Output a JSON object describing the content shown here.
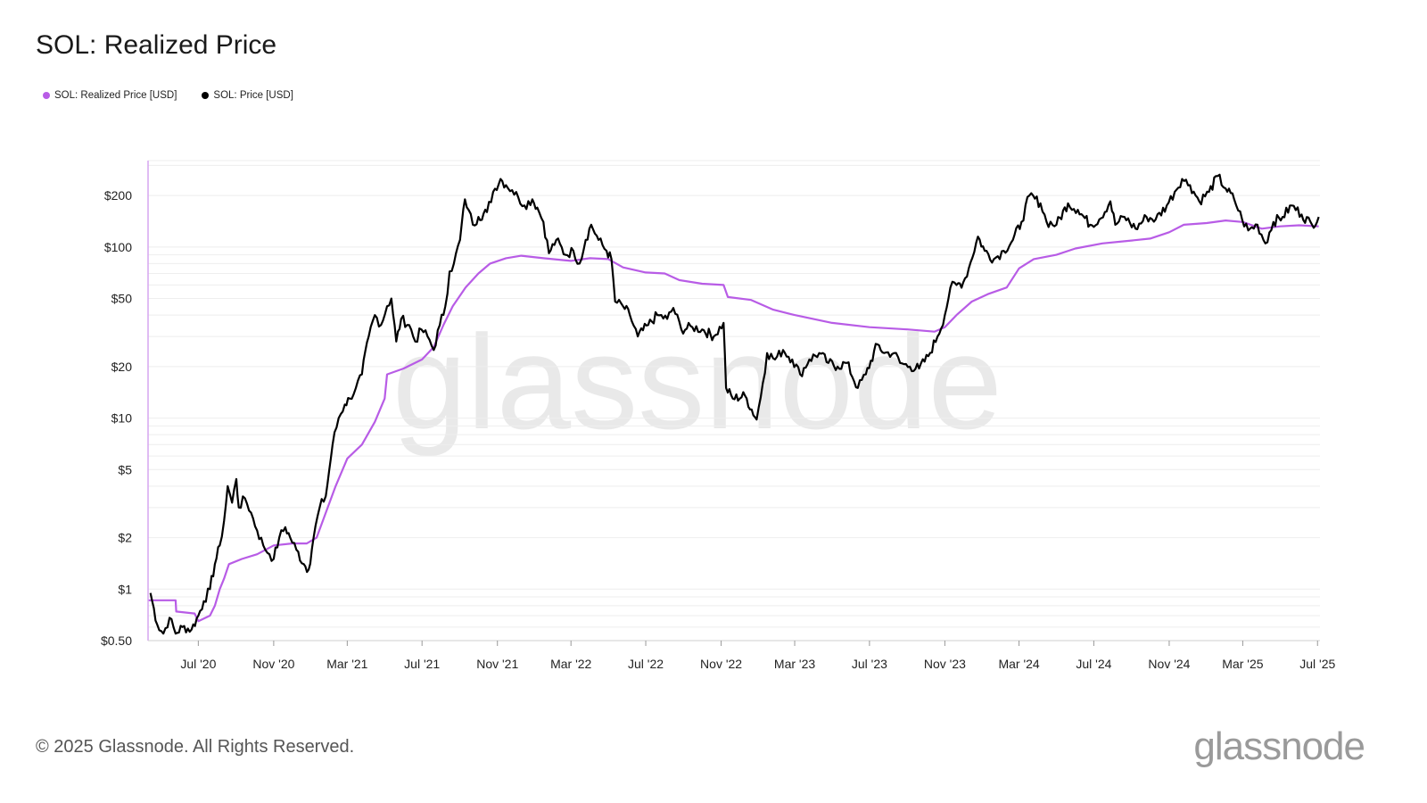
{
  "title": "SOL: Realized Price",
  "legend": [
    {
      "label": "SOL: Realized Price [USD]",
      "color": "#b85ce6"
    },
    {
      "label": "SOL: Price [USD]",
      "color": "#000000"
    }
  ],
  "watermark": "glassnode",
  "footer": {
    "copyright": "© 2025 Glassnode. All Rights Reserved.",
    "brand": "glassnode"
  },
  "chart_data": {
    "type": "line",
    "y_scale": "log",
    "ylim": [
      0.5,
      320
    ],
    "xlim": [
      "2020-04-10",
      "2025-07-05"
    ],
    "grid": true,
    "legend_position": "top-left",
    "y_ticks": [
      {
        "value": 0.5,
        "label": "$0.50"
      },
      {
        "value": 1,
        "label": "$1"
      },
      {
        "value": 2,
        "label": "$2"
      },
      {
        "value": 5,
        "label": "$5"
      },
      {
        "value": 10,
        "label": "$10"
      },
      {
        "value": 20,
        "label": "$20"
      },
      {
        "value": 50,
        "label": "$50"
      },
      {
        "value": 100,
        "label": "$100"
      },
      {
        "value": 200,
        "label": "$200"
      }
    ],
    "x_ticks": [
      {
        "date": "2020-07-01",
        "label": "Jul '20"
      },
      {
        "date": "2020-11-01",
        "label": "Nov '20"
      },
      {
        "date": "2021-03-01",
        "label": "Mar '21"
      },
      {
        "date": "2021-07-01",
        "label": "Jul '21"
      },
      {
        "date": "2021-11-01",
        "label": "Nov '21"
      },
      {
        "date": "2022-03-01",
        "label": "Mar '22"
      },
      {
        "date": "2022-07-01",
        "label": "Jul '22"
      },
      {
        "date": "2022-11-01",
        "label": "Nov '22"
      },
      {
        "date": "2023-03-01",
        "label": "Mar '23"
      },
      {
        "date": "2023-07-01",
        "label": "Jul '23"
      },
      {
        "date": "2023-11-01",
        "label": "Nov '23"
      },
      {
        "date": "2024-03-01",
        "label": "Mar '24"
      },
      {
        "date": "2024-07-01",
        "label": "Jul '24"
      },
      {
        "date": "2024-11-01",
        "label": "Nov '24"
      },
      {
        "date": "2025-03-01",
        "label": "Mar '25"
      },
      {
        "date": "2025-07-01",
        "label": "Jul '25"
      }
    ],
    "series": [
      {
        "name": "SOL: Realized Price [USD]",
        "color": "#b85ce6",
        "points": [
          [
            "2020-04-11",
            0.86
          ],
          [
            "2020-05-25",
            0.86
          ],
          [
            "2020-05-26",
            0.74
          ],
          [
            "2020-06-25",
            0.72
          ],
          [
            "2020-07-01",
            0.65
          ],
          [
            "2020-07-20",
            0.7
          ],
          [
            "2020-07-28",
            0.8
          ],
          [
            "2020-08-05",
            1.0
          ],
          [
            "2020-08-12",
            1.15
          ],
          [
            "2020-08-20",
            1.4
          ],
          [
            "2020-09-10",
            1.5
          ],
          [
            "2020-10-05",
            1.6
          ],
          [
            "2020-11-01",
            1.8
          ],
          [
            "2020-12-01",
            1.85
          ],
          [
            "2020-12-25",
            1.85
          ],
          [
            "2021-01-10",
            2.0
          ],
          [
            "2021-01-25",
            2.8
          ],
          [
            "2021-02-10",
            4.0
          ],
          [
            "2021-03-01",
            5.8
          ],
          [
            "2021-03-25",
            7.0
          ],
          [
            "2021-04-15",
            9.5
          ],
          [
            "2021-05-01",
            13.0
          ],
          [
            "2021-05-05",
            18.0
          ],
          [
            "2021-06-01",
            19.5
          ],
          [
            "2021-07-01",
            22.0
          ],
          [
            "2021-07-20",
            26.0
          ],
          [
            "2021-08-05",
            35.0
          ],
          [
            "2021-08-20",
            45.0
          ],
          [
            "2021-09-10",
            58.0
          ],
          [
            "2021-10-01",
            70.0
          ],
          [
            "2021-10-20",
            80.0
          ],
          [
            "2021-11-15",
            86.0
          ],
          [
            "2021-12-10",
            89.0
          ],
          [
            "2022-01-15",
            86.0
          ],
          [
            "2022-03-01",
            83.0
          ],
          [
            "2022-04-01",
            86.0
          ],
          [
            "2022-05-01",
            85.0
          ],
          [
            "2022-05-25",
            76.0
          ],
          [
            "2022-07-01",
            71.0
          ],
          [
            "2022-08-01",
            70.0
          ],
          [
            "2022-08-25",
            64.0
          ],
          [
            "2022-10-01",
            61.0
          ],
          [
            "2022-11-05",
            60.0
          ],
          [
            "2022-11-12",
            51.0
          ],
          [
            "2022-12-20",
            49.0
          ],
          [
            "2023-01-25",
            43.0
          ],
          [
            "2023-03-01",
            40.0
          ],
          [
            "2023-05-01",
            36.0
          ],
          [
            "2023-07-01",
            34.0
          ],
          [
            "2023-09-01",
            33.0
          ],
          [
            "2023-10-15",
            32.0
          ],
          [
            "2023-11-01",
            34.0
          ],
          [
            "2023-11-20",
            40.0
          ],
          [
            "2023-12-15",
            48.0
          ],
          [
            "2024-01-10",
            53.0
          ],
          [
            "2024-02-10",
            58.0
          ],
          [
            "2024-03-01",
            75.0
          ],
          [
            "2024-03-25",
            85.0
          ],
          [
            "2024-05-01",
            90.0
          ],
          [
            "2024-06-01",
            98.0
          ],
          [
            "2024-07-15",
            105.0
          ],
          [
            "2024-08-20",
            108.0
          ],
          [
            "2024-10-01",
            112.0
          ],
          [
            "2024-11-01",
            122.0
          ],
          [
            "2024-11-25",
            135.0
          ],
          [
            "2025-01-01",
            138.0
          ],
          [
            "2025-02-01",
            143.0
          ],
          [
            "2025-03-01",
            140.0
          ],
          [
            "2025-04-01",
            128.0
          ],
          [
            "2025-05-01",
            132.0
          ],
          [
            "2025-06-01",
            134.0
          ],
          [
            "2025-07-03",
            132.0
          ]
        ]
      },
      {
        "name": "SOL: Price [USD]",
        "color": "#000000",
        "points": [
          [
            "2020-04-14",
            0.95
          ],
          [
            "2020-04-25",
            0.62
          ],
          [
            "2020-05-05",
            0.55
          ],
          [
            "2020-05-15",
            0.68
          ],
          [
            "2020-05-25",
            0.55
          ],
          [
            "2020-06-05",
            0.6
          ],
          [
            "2020-06-20",
            0.58
          ],
          [
            "2020-07-01",
            0.7
          ],
          [
            "2020-07-10",
            0.85
          ],
          [
            "2020-07-20",
            1.0
          ],
          [
            "2020-07-28",
            1.4
          ],
          [
            "2020-08-05",
            1.8
          ],
          [
            "2020-08-12",
            2.5
          ],
          [
            "2020-08-18",
            4.0
          ],
          [
            "2020-08-25",
            3.2
          ],
          [
            "2020-09-01",
            4.4
          ],
          [
            "2020-09-05",
            3.0
          ],
          [
            "2020-09-15",
            3.4
          ],
          [
            "2020-09-25",
            2.8
          ],
          [
            "2020-10-05",
            2.2
          ],
          [
            "2020-10-15",
            1.8
          ],
          [
            "2020-10-25",
            1.6
          ],
          [
            "2020-11-01",
            1.5
          ],
          [
            "2020-11-10",
            2.0
          ],
          [
            "2020-11-20",
            2.3
          ],
          [
            "2020-11-28",
            2.0
          ],
          [
            "2020-12-08",
            1.7
          ],
          [
            "2020-12-20",
            1.4
          ],
          [
            "2020-12-28",
            1.3
          ],
          [
            "2021-01-05",
            2.0
          ],
          [
            "2021-01-15",
            3.0
          ],
          [
            "2021-01-25",
            3.5
          ],
          [
            "2021-02-05",
            7.0
          ],
          [
            "2021-02-15",
            10.0
          ],
          [
            "2021-02-25",
            12.0
          ],
          [
            "2021-03-05",
            13.0
          ],
          [
            "2021-03-15",
            15.0
          ],
          [
            "2021-03-25",
            18.0
          ],
          [
            "2021-04-05",
            30.0
          ],
          [
            "2021-04-15",
            40.0
          ],
          [
            "2021-04-25",
            35.0
          ],
          [
            "2021-05-05",
            45.0
          ],
          [
            "2021-05-12",
            50.0
          ],
          [
            "2021-05-20",
            28.0
          ],
          [
            "2021-05-28",
            38.0
          ],
          [
            "2021-06-10",
            35.0
          ],
          [
            "2021-06-20",
            28.0
          ],
          [
            "2021-06-30",
            33.0
          ],
          [
            "2021-07-10",
            30.0
          ],
          [
            "2021-07-20",
            25.0
          ],
          [
            "2021-07-30",
            35.0
          ],
          [
            "2021-08-08",
            45.0
          ],
          [
            "2021-08-15",
            72.0
          ],
          [
            "2021-08-22",
            80.0
          ],
          [
            "2021-09-01",
            110.0
          ],
          [
            "2021-09-09",
            190.0
          ],
          [
            "2021-09-15",
            165.0
          ],
          [
            "2021-09-22",
            135.0
          ],
          [
            "2021-10-01",
            150.0
          ],
          [
            "2021-10-15",
            160.0
          ],
          [
            "2021-10-25",
            210.0
          ],
          [
            "2021-11-06",
            250.0
          ],
          [
            "2021-11-15",
            230.0
          ],
          [
            "2021-11-25",
            215.0
          ],
          [
            "2021-12-05",
            195.0
          ],
          [
            "2021-12-15",
            175.0
          ],
          [
            "2021-12-28",
            190.0
          ],
          [
            "2022-01-05",
            170.0
          ],
          [
            "2022-01-15",
            140.0
          ],
          [
            "2022-01-24",
            92.0
          ],
          [
            "2022-02-05",
            110.0
          ],
          [
            "2022-02-20",
            90.0
          ],
          [
            "2022-03-05",
            95.0
          ],
          [
            "2022-03-15",
            80.0
          ],
          [
            "2022-03-25",
            110.0
          ],
          [
            "2022-04-03",
            135.0
          ],
          [
            "2022-04-15",
            110.0
          ],
          [
            "2022-04-28",
            95.0
          ],
          [
            "2022-05-06",
            85.0
          ],
          [
            "2022-05-12",
            48.0
          ],
          [
            "2022-05-25",
            45.0
          ],
          [
            "2022-06-05",
            40.0
          ],
          [
            "2022-06-18",
            30.0
          ],
          [
            "2022-07-05",
            35.0
          ],
          [
            "2022-07-20",
            40.0
          ],
          [
            "2022-08-05",
            38.0
          ],
          [
            "2022-08-15",
            44.0
          ],
          [
            "2022-08-28",
            33.0
          ],
          [
            "2022-09-15",
            34.0
          ],
          [
            "2022-10-01",
            33.0
          ],
          [
            "2022-10-20",
            30.0
          ],
          [
            "2022-11-05",
            36.0
          ],
          [
            "2022-11-09",
            15.0
          ],
          [
            "2022-11-20",
            13.0
          ],
          [
            "2022-12-10",
            13.5
          ],
          [
            "2022-12-29",
            9.8
          ],
          [
            "2023-01-08",
            16.0
          ],
          [
            "2023-01-15",
            24.0
          ],
          [
            "2023-01-28",
            22.0
          ],
          [
            "2023-02-10",
            25.0
          ],
          [
            "2023-02-25",
            22.0
          ],
          [
            "2023-03-10",
            18.0
          ],
          [
            "2023-03-25",
            22.0
          ],
          [
            "2023-04-10",
            24.0
          ],
          [
            "2023-04-25",
            21.0
          ],
          [
            "2023-05-10",
            20.0
          ],
          [
            "2023-05-25",
            21.0
          ],
          [
            "2023-06-12",
            15.0
          ],
          [
            "2023-06-25",
            18.0
          ],
          [
            "2023-07-14",
            27.0
          ],
          [
            "2023-07-25",
            24.0
          ],
          [
            "2023-08-10",
            24.0
          ],
          [
            "2023-08-20",
            21.0
          ],
          [
            "2023-09-05",
            20.0
          ],
          [
            "2023-09-20",
            19.5
          ],
          [
            "2023-10-05",
            23.0
          ],
          [
            "2023-10-20",
            30.0
          ],
          [
            "2023-11-01",
            40.0
          ],
          [
            "2023-11-10",
            58.0
          ],
          [
            "2023-11-20",
            60.0
          ],
          [
            "2023-12-01",
            62.0
          ],
          [
            "2023-12-10",
            75.0
          ],
          [
            "2023-12-25",
            115.0
          ],
          [
            "2024-01-05",
            95.0
          ],
          [
            "2024-01-20",
            85.0
          ],
          [
            "2024-02-05",
            95.0
          ],
          [
            "2024-02-20",
            110.0
          ],
          [
            "2024-03-05",
            140.0
          ],
          [
            "2024-03-18",
            200.0
          ],
          [
            "2024-04-05",
            180.0
          ],
          [
            "2024-04-15",
            140.0
          ],
          [
            "2024-05-01",
            135.0
          ],
          [
            "2024-05-20",
            180.0
          ],
          [
            "2024-06-05",
            165.0
          ],
          [
            "2024-06-25",
            135.0
          ],
          [
            "2024-07-10",
            145.0
          ],
          [
            "2024-07-28",
            185.0
          ],
          [
            "2024-08-05",
            135.0
          ],
          [
            "2024-08-20",
            150.0
          ],
          [
            "2024-09-07",
            128.0
          ],
          [
            "2024-09-25",
            150.0
          ],
          [
            "2024-10-10",
            145.0
          ],
          [
            "2024-10-28",
            175.0
          ],
          [
            "2024-11-10",
            210.0
          ],
          [
            "2024-11-22",
            250.0
          ],
          [
            "2024-12-05",
            230.0
          ],
          [
            "2024-12-20",
            185.0
          ],
          [
            "2025-01-05",
            210.0
          ],
          [
            "2025-01-19",
            260.0
          ],
          [
            "2025-02-01",
            220.0
          ],
          [
            "2025-02-15",
            190.0
          ],
          [
            "2025-02-28",
            145.0
          ],
          [
            "2025-03-10",
            125.0
          ],
          [
            "2025-03-25",
            135.0
          ],
          [
            "2025-04-07",
            105.0
          ],
          [
            "2025-04-20",
            140.0
          ],
          [
            "2025-05-05",
            150.0
          ],
          [
            "2025-05-20",
            175.0
          ],
          [
            "2025-06-05",
            155.0
          ],
          [
            "2025-06-22",
            135.0
          ],
          [
            "2025-07-03",
            150.0
          ]
        ]
      }
    ]
  }
}
